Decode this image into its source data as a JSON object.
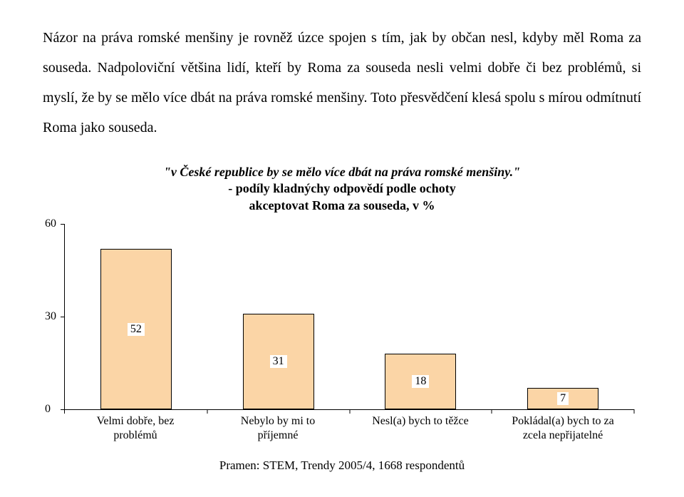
{
  "paragraph": "Názor na práva romské menšiny je rovněž úzce spojen s tím, jak by občan nesl, kdyby měl Roma za souseda. Nadpoloviční většina lidí, kteří by Roma za souseda nesli velmi dobře či bez problémů, si myslí, že by se mělo více dbát na práva romské menšiny. Toto přesvědčení klesá spolu s mírou odmítnutí Roma jako souseda.",
  "chart": {
    "title": "\"v České republice by se mělo více dbát na práva romské menšiny.\"",
    "subtitle_line1": "- podíly kladnýchy odpovědí podle ochoty",
    "subtitle_line2": "akceptovat Roma za souseda, v %",
    "type": "bar",
    "ymax": 60,
    "yticks": [
      0,
      30,
      60
    ],
    "bar_color": "#fbd5a6",
    "border_color": "#000000",
    "background_color": "#ffffff",
    "bars": [
      {
        "label_line1": "Velmi dobře, bez",
        "label_line2": "problémů",
        "value": 52
      },
      {
        "label_line1": "Nebylo by mi to",
        "label_line2": "příjemné",
        "value": 31
      },
      {
        "label_line1": "Nesl(a) bych to těžce",
        "label_line2": "",
        "value": 18
      },
      {
        "label_line1": "Pokládal(a) bych to za",
        "label_line2": "zcela nepřijatelné",
        "value": 7
      }
    ]
  },
  "source": "Pramen: STEM, Trendy 2005/4, 1668 respondentů"
}
